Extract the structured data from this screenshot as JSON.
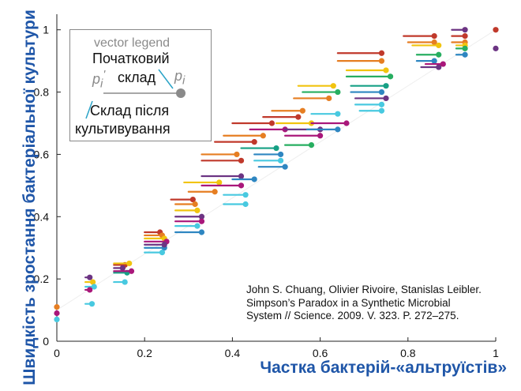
{
  "chart_data": {
    "type": "scatter",
    "title": "",
    "xlabel": "Частка бактерій-«альтруїстів»",
    "ylabel": "Швидкість зростання бактеріальної культури",
    "xlim": [
      0,
      1
    ],
    "ylim": [
      0,
      1.05
    ],
    "xticks": [
      0,
      0.2,
      0.4,
      0.6,
      0.8,
      1
    ],
    "xtick_labels": [
      "0",
      "0.2",
      "0.4",
      "0.6",
      "0.8",
      "1"
    ],
    "yticks": [
      0,
      0.2,
      0.4,
      0.6,
      0.8,
      1
    ],
    "ytick_labels": [
      "0",
      "0.2",
      "0.4",
      "0.6",
      "0.8",
      "1"
    ],
    "grid": false,
    "legend": {
      "position": "top-left",
      "title": "vector legend",
      "initial_label_line1": "Початковий",
      "initial_label_line2": "склад",
      "initial_symbol": "p",
      "initial_symbol_sup": "'",
      "initial_symbol_sub": "i",
      "final_symbol": "p",
      "final_symbol_sub": "i",
      "final_label_line1": "Склад після",
      "final_label_line2": "культивування"
    },
    "citation": [
      "John S. Chuang, Olivier Rivoire, Stanislas Leibler.",
      "Simpson’s Paradox in a Synthetic Microbial",
      "System // Science. 2009. V. 323. P. 272–275."
    ],
    "color_map": {
      "red": "#c0392b",
      "orange": "#e67e22",
      "yellow": "#f1c40f",
      "green": "#27ae60",
      "teal": "#16a085",
      "blue": "#2e86c1",
      "purple": "#6c3483",
      "magenta": "#a9177a",
      "cyan": "#48c9e0"
    },
    "series": [
      {
        "points": [
          {
            "x0": 0.0,
            "x1": 0.0,
            "y": 0.11,
            "c": "orange"
          },
          {
            "x0": 0.0,
            "x1": 0.0,
            "y": 0.09,
            "c": "magenta"
          },
          {
            "x0": 0.0,
            "x1": 0.0,
            "y": 0.07,
            "c": "cyan"
          },
          {
            "x0": 0.065,
            "x1": 0.075,
            "y": 0.205,
            "c": "purple"
          },
          {
            "x0": 0.065,
            "x1": 0.082,
            "y": 0.19,
            "c": "yellow"
          },
          {
            "x0": 0.065,
            "x1": 0.085,
            "y": 0.175,
            "c": "cyan"
          },
          {
            "x0": 0.065,
            "x1": 0.075,
            "y": 0.165,
            "c": "magenta"
          },
          {
            "x0": 0.065,
            "x1": 0.08,
            "y": 0.12,
            "c": "cyan"
          },
          {
            "x0": 0.13,
            "x1": 0.155,
            "y": 0.245,
            "c": "red"
          },
          {
            "x0": 0.13,
            "x1": 0.165,
            "y": 0.25,
            "c": "yellow"
          },
          {
            "x0": 0.13,
            "x1": 0.15,
            "y": 0.235,
            "c": "purple"
          },
          {
            "x0": 0.13,
            "x1": 0.16,
            "y": 0.22,
            "c": "teal"
          },
          {
            "x0": 0.13,
            "x1": 0.17,
            "y": 0.225,
            "c": "magenta"
          },
          {
            "x0": 0.13,
            "x1": 0.155,
            "y": 0.19,
            "c": "cyan"
          },
          {
            "x0": 0.2,
            "x1": 0.235,
            "y": 0.35,
            "c": "red"
          },
          {
            "x0": 0.2,
            "x1": 0.24,
            "y": 0.34,
            "c": "orange"
          },
          {
            "x0": 0.2,
            "x1": 0.245,
            "y": 0.33,
            "c": "yellow"
          },
          {
            "x0": 0.2,
            "x1": 0.25,
            "y": 0.32,
            "c": "magenta"
          },
          {
            "x0": 0.2,
            "x1": 0.245,
            "y": 0.3,
            "c": "blue"
          },
          {
            "x0": 0.2,
            "x1": 0.24,
            "y": 0.285,
            "c": "cyan"
          },
          {
            "x0": 0.2,
            "x1": 0.245,
            "y": 0.31,
            "c": "purple"
          },
          {
            "x0": 0.26,
            "x1": 0.31,
            "y": 0.455,
            "c": "red"
          },
          {
            "x0": 0.27,
            "x1": 0.315,
            "y": 0.44,
            "c": "orange"
          },
          {
            "x0": 0.27,
            "x1": 0.32,
            "y": 0.42,
            "c": "yellow"
          },
          {
            "x0": 0.27,
            "x1": 0.33,
            "y": 0.4,
            "c": "purple"
          },
          {
            "x0": 0.27,
            "x1": 0.33,
            "y": 0.385,
            "c": "magenta"
          },
          {
            "x0": 0.27,
            "x1": 0.32,
            "y": 0.37,
            "c": "cyan"
          },
          {
            "x0": 0.27,
            "x1": 0.33,
            "y": 0.35,
            "c": "blue"
          },
          {
            "x0": 0.29,
            "x1": 0.37,
            "y": 0.51,
            "c": "yellow"
          },
          {
            "x0": 0.3,
            "x1": 0.36,
            "y": 0.48,
            "c": "orange"
          },
          {
            "x0": 0.33,
            "x1": 0.42,
            "y": 0.53,
            "c": "purple"
          },
          {
            "x0": 0.33,
            "x1": 0.42,
            "y": 0.5,
            "c": "magenta"
          },
          {
            "x0": 0.38,
            "x1": 0.43,
            "y": 0.47,
            "c": "cyan"
          },
          {
            "x0": 0.38,
            "x1": 0.43,
            "y": 0.44,
            "c": "cyan"
          },
          {
            "x0": 0.4,
            "x1": 0.45,
            "y": 0.52,
            "c": "blue"
          },
          {
            "x0": 0.33,
            "x1": 0.42,
            "y": 0.58,
            "c": "red"
          },
          {
            "x0": 0.33,
            "x1": 0.41,
            "y": 0.6,
            "c": "orange"
          },
          {
            "x0": 0.36,
            "x1": 0.45,
            "y": 0.64,
            "c": "red"
          },
          {
            "x0": 0.38,
            "x1": 0.47,
            "y": 0.66,
            "c": "orange"
          },
          {
            "x0": 0.4,
            "x1": 0.49,
            "y": 0.7,
            "c": "red"
          },
          {
            "x0": 0.42,
            "x1": 0.5,
            "y": 0.62,
            "c": "teal"
          },
          {
            "x0": 0.45,
            "x1": 0.51,
            "y": 0.6,
            "c": "blue"
          },
          {
            "x0": 0.45,
            "x1": 0.51,
            "y": 0.58,
            "c": "cyan"
          },
          {
            "x0": 0.46,
            "x1": 0.52,
            "y": 0.56,
            "c": "blue"
          },
          {
            "x0": 0.44,
            "x1": 0.52,
            "y": 0.68,
            "c": "magenta"
          },
          {
            "x0": 0.47,
            "x1": 0.55,
            "y": 0.72,
            "c": "red"
          },
          {
            "x0": 0.49,
            "x1": 0.56,
            "y": 0.74,
            "c": "orange"
          },
          {
            "x0": 0.5,
            "x1": 0.58,
            "y": 0.7,
            "c": "yellow"
          },
          {
            "x0": 0.52,
            "x1": 0.6,
            "y": 0.68,
            "c": "purple"
          },
          {
            "x0": 0.52,
            "x1": 0.6,
            "y": 0.66,
            "c": "magenta"
          },
          {
            "x0": 0.52,
            "x1": 0.58,
            "y": 0.63,
            "c": "green"
          },
          {
            "x0": 0.54,
            "x1": 0.62,
            "y": 0.78,
            "c": "orange"
          },
          {
            "x0": 0.55,
            "x1": 0.63,
            "y": 0.82,
            "c": "yellow"
          },
          {
            "x0": 0.56,
            "x1": 0.64,
            "y": 0.8,
            "c": "green"
          },
          {
            "x0": 0.58,
            "x1": 0.64,
            "y": 0.73,
            "c": "cyan"
          },
          {
            "x0": 0.58,
            "x1": 0.66,
            "y": 0.7,
            "c": "magenta"
          },
          {
            "x0": 0.57,
            "x1": 0.64,
            "y": 0.68,
            "c": "blue"
          },
          {
            "x0": 0.64,
            "x1": 0.74,
            "y": 0.925,
            "c": "red"
          },
          {
            "x0": 0.64,
            "x1": 0.74,
            "y": 0.9,
            "c": "orange"
          },
          {
            "x0": 0.66,
            "x1": 0.75,
            "y": 0.87,
            "c": "yellow"
          },
          {
            "x0": 0.66,
            "x1": 0.76,
            "y": 0.85,
            "c": "green"
          },
          {
            "x0": 0.67,
            "x1": 0.75,
            "y": 0.82,
            "c": "teal"
          },
          {
            "x0": 0.67,
            "x1": 0.74,
            "y": 0.8,
            "c": "blue"
          },
          {
            "x0": 0.68,
            "x1": 0.75,
            "y": 0.78,
            "c": "purple"
          },
          {
            "x0": 0.68,
            "x1": 0.74,
            "y": 0.76,
            "c": "cyan"
          },
          {
            "x0": 0.69,
            "x1": 0.74,
            "y": 0.74,
            "c": "cyan"
          },
          {
            "x0": 0.79,
            "x1": 0.86,
            "y": 0.98,
            "c": "red"
          },
          {
            "x0": 0.8,
            "x1": 0.86,
            "y": 0.96,
            "c": "orange"
          },
          {
            "x0": 0.81,
            "x1": 0.87,
            "y": 0.95,
            "c": "yellow"
          },
          {
            "x0": 0.82,
            "x1": 0.87,
            "y": 0.92,
            "c": "green"
          },
          {
            "x0": 0.82,
            "x1": 0.86,
            "y": 0.9,
            "c": "blue"
          },
          {
            "x0": 0.83,
            "x1": 0.87,
            "y": 0.88,
            "c": "purple"
          },
          {
            "x0": 0.84,
            "x1": 0.88,
            "y": 0.89,
            "c": "magenta"
          },
          {
            "x0": 0.9,
            "x1": 0.93,
            "y": 1.0,
            "c": "purple"
          },
          {
            "x0": 0.9,
            "x1": 0.93,
            "y": 0.98,
            "c": "red"
          },
          {
            "x0": 0.9,
            "x1": 0.93,
            "y": 0.96,
            "c": "orange"
          },
          {
            "x0": 0.91,
            "x1": 0.93,
            "y": 0.95,
            "c": "yellow"
          },
          {
            "x0": 0.91,
            "x1": 0.93,
            "y": 0.94,
            "c": "green"
          },
          {
            "x0": 0.91,
            "x1": 0.93,
            "y": 0.92,
            "c": "blue"
          },
          {
            "x0": 1.0,
            "x1": 1.0,
            "y": 1.0,
            "c": "red"
          },
          {
            "x0": 1.0,
            "x1": 1.0,
            "y": 0.94,
            "c": "purple"
          }
        ]
      }
    ]
  }
}
